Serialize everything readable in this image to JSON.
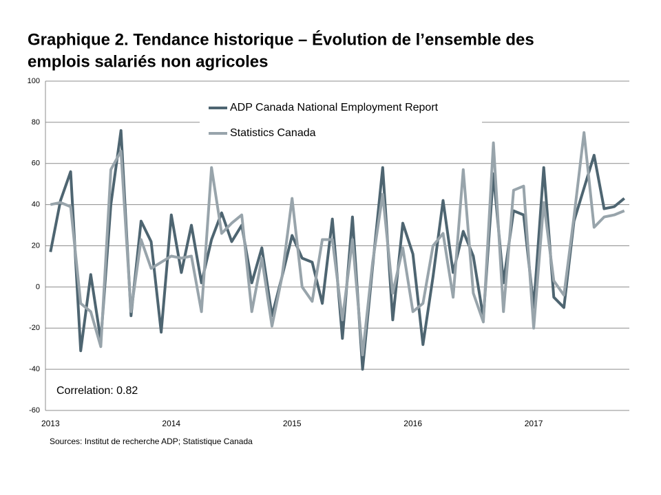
{
  "chart_data": {
    "type": "line",
    "title": [
      "Graphique 2. Tendance historique – Évolution de l’ensemble des",
      "emplois salariés non agricoles"
    ],
    "categories": [
      "2013",
      null,
      null,
      null,
      null,
      null,
      null,
      null,
      null,
      null,
      null,
      null,
      "2014",
      null,
      null,
      null,
      null,
      null,
      null,
      null,
      null,
      null,
      null,
      null,
      "2015",
      null,
      null,
      null,
      null,
      null,
      null,
      null,
      null,
      null,
      null,
      null,
      "2016",
      null,
      null,
      null,
      null,
      null,
      null,
      null,
      null,
      null,
      null,
      null,
      "2017",
      null,
      null,
      null,
      null,
      null,
      null,
      null,
      null,
      null
    ],
    "series": [
      {
        "name": "ADP Canada National Employment Report",
        "color": "#4e6571",
        "values": [
          17,
          42,
          56,
          -31,
          6,
          -26,
          40,
          76,
          -14,
          32,
          22,
          -22,
          35,
          7,
          30,
          2,
          23,
          36,
          22,
          30,
          2,
          19,
          -14,
          5,
          25,
          14,
          12,
          -8,
          33,
          -25,
          34,
          -40,
          10,
          58,
          -16,
          31,
          16,
          -28,
          5,
          42,
          7,
          27,
          15,
          -15,
          55,
          2,
          37,
          35,
          -10,
          58,
          -5,
          -10,
          32,
          48,
          64,
          38,
          39,
          43
        ]
      },
      {
        "name": "Statistics Canada",
        "color": "#98a4ab",
        "values": [
          40,
          41,
          39,
          -8,
          -12,
          -29,
          57,
          66,
          -12,
          23,
          9,
          12,
          15,
          14,
          15,
          -12,
          58,
          26,
          31,
          35,
          -12,
          14,
          -19,
          5,
          43,
          0,
          -7,
          23,
          23,
          -16,
          23,
          -33,
          12,
          45,
          -3,
          19,
          -12,
          -8,
          20,
          26,
          -5,
          57,
          -3,
          -17,
          70,
          -12,
          47,
          49,
          -20,
          41,
          3,
          -4,
          34,
          75,
          29,
          34,
          35,
          37
        ]
      }
    ],
    "ylim": [
      -60,
      100
    ],
    "yticks": [
      -60,
      -40,
      -20,
      0,
      20,
      40,
      60,
      80,
      100
    ],
    "grid": true,
    "legend": "top",
    "annotation": "Correlation: 0.82",
    "source": "Sources: Institut de recherche  ADP; Statistique Canada"
  }
}
